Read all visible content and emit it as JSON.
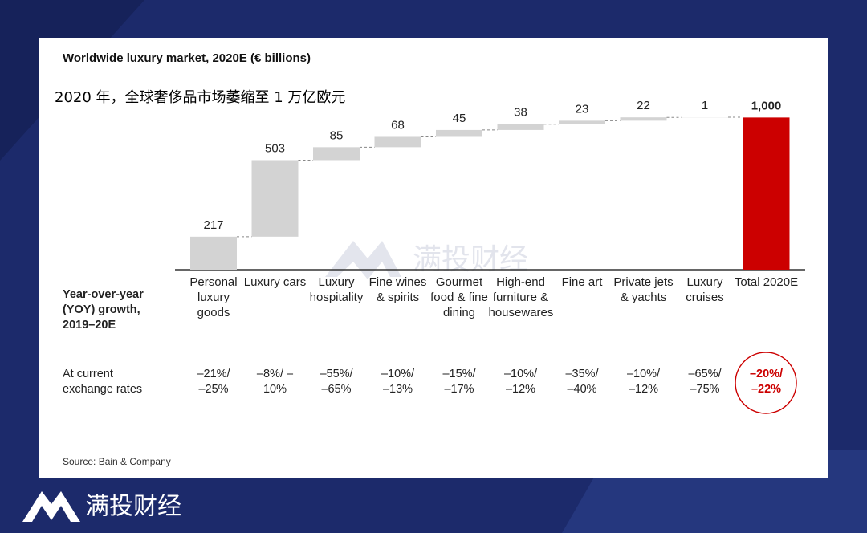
{
  "chart_data": {
    "type": "waterfall",
    "title": "Worldwide luxury market, 2020E (€ billions)",
    "subtitle": "2020 年，全球奢侈品市场萎缩至 1 万亿欧元",
    "categories": [
      "Personal luxury goods",
      "Luxury cars",
      "Luxury hospitality",
      "Fine wines & spirits",
      "Gourmet food & fine dining",
      "High-end furniture & housewares",
      "Fine art",
      "Private jets & yachts",
      "Luxury cruises",
      "Total 2020E"
    ],
    "values": [
      217,
      503,
      85,
      68,
      45,
      38,
      23,
      22,
      1,
      1000
    ],
    "value_labels": [
      "217",
      "503",
      "85",
      "68",
      "45",
      "38",
      "23",
      "22",
      "1",
      "1,000"
    ],
    "measure": [
      "relative",
      "relative",
      "relative",
      "relative",
      "relative",
      "relative",
      "relative",
      "relative",
      "relative",
      "total"
    ],
    "color": "#d3d3d3",
    "total_color": "#cc0000",
    "row_label_growth": "Year-over-year (YOY) growth, 2019–20E",
    "row_label_rates": "At current exchange rates",
    "yoy": [
      "–21%/ –25%",
      "–8%/ –10%",
      "–55%/ –65%",
      "–10%/ –13%",
      "–15%/ –17%",
      "–10%/ –12%",
      "–35%/ –40%",
      "–10%/ –12%",
      "–65%/ –75%",
      "–20%/ –22%"
    ],
    "source": "Source: Bain & Company"
  },
  "watermark": "满投财经",
  "brand": "满投财经"
}
